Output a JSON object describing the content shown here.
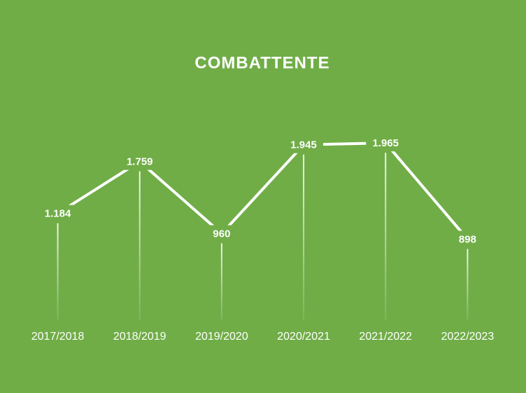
{
  "chart_data": {
    "type": "line",
    "title": "COMBATTENTE",
    "categories": [
      "2017/2018",
      "2018/2019",
      "2019/2020",
      "2020/2021",
      "2021/2022",
      "2022/2023"
    ],
    "values": [
      1184,
      1759,
      960,
      1945,
      1965,
      898
    ],
    "value_labels": [
      "1.184",
      "1.759",
      "960",
      "1.945",
      "1.965",
      "898"
    ],
    "color": "#ffffff",
    "background": "#70ad47"
  }
}
